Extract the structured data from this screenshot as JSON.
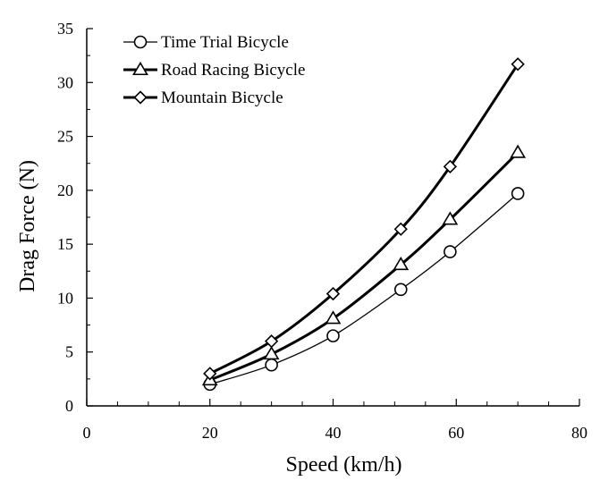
{
  "chart_data": {
    "type": "line",
    "title": "",
    "xlabel": "Speed (km/h)",
    "ylabel": "Drag Force (N)",
    "xlim": [
      0,
      80
    ],
    "ylim": [
      0,
      35
    ],
    "x_ticks": [
      0,
      20,
      40,
      60,
      80
    ],
    "y_ticks": [
      0,
      5,
      10,
      15,
      20,
      25,
      30,
      35
    ],
    "grid": false,
    "legend_position": "top-left",
    "x": [
      20,
      30,
      40,
      51,
      59,
      70
    ],
    "series": [
      {
        "name": "Time Trial Bicycle",
        "marker": "circle",
        "line_weight": "thin",
        "color": "#000000",
        "values": [
          2.0,
          3.8,
          6.5,
          10.8,
          14.3,
          19.7
        ]
      },
      {
        "name": "Road Racing Bicycle",
        "marker": "triangle",
        "line_weight": "bold",
        "color": "#000000",
        "values": [
          2.4,
          4.8,
          8.1,
          13.1,
          17.3,
          23.5
        ]
      },
      {
        "name": "Mountain Bicycle",
        "marker": "diamond",
        "line_weight": "bold",
        "color": "#000000",
        "values": [
          3.0,
          6.0,
          10.4,
          16.4,
          22.2,
          31.7
        ]
      }
    ]
  }
}
